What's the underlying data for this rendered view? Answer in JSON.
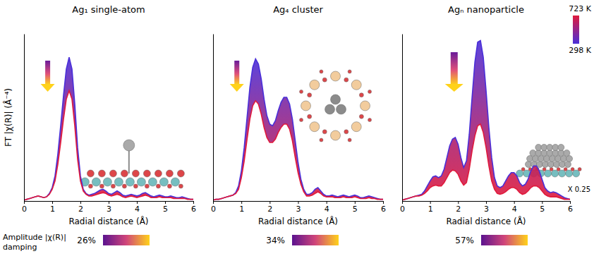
{
  "chart_data": [
    {
      "type": "line",
      "title": "Ag₁ single-atom",
      "x_label": "Radial distance (Å)",
      "y_label": "FT |χ(R)| (Å⁻⁴)",
      "x": [
        0,
        0.1,
        0.2,
        0.3,
        0.4,
        0.5,
        0.6,
        0.7,
        0.8,
        0.9,
        1,
        1.1,
        1.2,
        1.3,
        1.4,
        1.5,
        1.6,
        1.7,
        1.8,
        1.9,
        2,
        2.1,
        2.2,
        2.3,
        2.4,
        2.5,
        2.6,
        2.7,
        2.8,
        2.9,
        3,
        3.1,
        3.2,
        3.3,
        3.4,
        3.5,
        3.6,
        3.7,
        3.8,
        3.9,
        4,
        4.1,
        4.2,
        4.3,
        4.4,
        4.5,
        4.6,
        4.7,
        4.8,
        4.9,
        5,
        5.1,
        5.2,
        5.3,
        5.4,
        5.5,
        5.6,
        5.7,
        5.8,
        5.9,
        6
      ],
      "series": [
        {
          "name": "298 K",
          "color": "#4a2fd8",
          "values": [
            0.05,
            0.1,
            0.15,
            0.2,
            0.25,
            0.3,
            0.25,
            0.2,
            0.25,
            0.45,
            0.8,
            1.5,
            2.8,
            4.5,
            6.3,
            7.9,
            8.6,
            7.9,
            5.8,
            3.2,
            1.5,
            0.7,
            0.45,
            0.35,
            0.4,
            0.45,
            0.55,
            0.65,
            0.7,
            0.6,
            0.45,
            0.4,
            0.5,
            0.6,
            0.5,
            0.35,
            0.3,
            0.35,
            0.4,
            0.35,
            0.3,
            0.35,
            0.45,
            0.5,
            0.4,
            0.3,
            0.25,
            0.3,
            0.35,
            0.3,
            0.25,
            0.25,
            0.3,
            0.25,
            0.2,
            0.2,
            0.25,
            0.2,
            0.15,
            0.1,
            0.1
          ]
        },
        {
          "name": "723 K",
          "color": "#e01a3c",
          "values": [
            0.05,
            0.1,
            0.15,
            0.2,
            0.25,
            0.3,
            0.25,
            0.2,
            0.25,
            0.4,
            0.7,
            1.2,
            2.2,
            3.5,
            4.9,
            6.1,
            6.6,
            6.1,
            4.5,
            2.5,
            1.2,
            0.6,
            0.4,
            0.3,
            0.3,
            0.35,
            0.4,
            0.45,
            0.5,
            0.45,
            0.35,
            0.3,
            0.35,
            0.4,
            0.35,
            0.25,
            0.2,
            0.25,
            0.3,
            0.25,
            0.2,
            0.25,
            0.3,
            0.35,
            0.3,
            0.2,
            0.2,
            0.2,
            0.25,
            0.2,
            0.2,
            0.2,
            0.2,
            0.15,
            0.15,
            0.15,
            0.15,
            0.15,
            0.1,
            0.1,
            0.1
          ]
        }
      ],
      "xlim": [
        0,
        6
      ],
      "xticks": [
        0,
        1,
        2,
        3,
        4,
        5,
        6
      ],
      "ylim": [
        0,
        10
      ],
      "yticks": [],
      "tick_labels": "x",
      "damping": "26%"
    },
    {
      "type": "line",
      "title": "Ag₄ cluster",
      "x_label": "Radial distance (Å)",
      "x": [
        0,
        0.1,
        0.2,
        0.3,
        0.4,
        0.5,
        0.6,
        0.7,
        0.8,
        0.9,
        1,
        1.1,
        1.2,
        1.3,
        1.4,
        1.5,
        1.6,
        1.7,
        1.8,
        1.9,
        2,
        2.1,
        2.2,
        2.3,
        2.4,
        2.5,
        2.6,
        2.7,
        2.8,
        2.9,
        3,
        3.1,
        3.2,
        3.3,
        3.4,
        3.5,
        3.6,
        3.7,
        3.8,
        3.9,
        4,
        4.1,
        4.2,
        4.3,
        4.4,
        4.5,
        4.6,
        4.7,
        4.8,
        4.9,
        5,
        5.1,
        5.2,
        5.3,
        5.4,
        5.5,
        5.6,
        5.7,
        5.8,
        5.9,
        6
      ],
      "series": [
        {
          "name": "298 K",
          "color": "#4a2fd8",
          "values": [
            0.05,
            0.1,
            0.1,
            0.15,
            0.2,
            0.25,
            0.3,
            0.35,
            0.5,
            0.9,
            1.8,
            3.2,
            5.0,
            6.8,
            8.0,
            8.5,
            8.2,
            7.3,
            6.1,
            5.1,
            4.6,
            4.5,
            4.8,
            5.4,
            5.9,
            6.2,
            6.2,
            5.8,
            4.9,
            3.6,
            2.3,
            1.3,
            0.7,
            0.4,
            0.4,
            0.5,
            0.7,
            0.8,
            0.6,
            0.4,
            0.3,
            0.3,
            0.35,
            0.3,
            0.25,
            0.3,
            0.35,
            0.3,
            0.25,
            0.3,
            0.35,
            0.3,
            0.2,
            0.2,
            0.25,
            0.3,
            0.25,
            0.2,
            0.15,
            0.1,
            0.1
          ]
        },
        {
          "name": "723 K",
          "color": "#e01a3c",
          "values": [
            0.05,
            0.1,
            0.1,
            0.15,
            0.2,
            0.25,
            0.3,
            0.35,
            0.45,
            0.7,
            1.4,
            2.4,
            3.7,
            4.9,
            5.7,
            6.0,
            5.8,
            5.2,
            4.4,
            3.8,
            3.5,
            3.5,
            3.7,
            4.1,
            4.4,
            4.6,
            4.6,
            4.3,
            3.6,
            2.6,
            1.7,
            1.0,
            0.55,
            0.3,
            0.3,
            0.35,
            0.45,
            0.55,
            0.45,
            0.3,
            0.25,
            0.25,
            0.25,
            0.2,
            0.2,
            0.2,
            0.25,
            0.2,
            0.2,
            0.2,
            0.25,
            0.2,
            0.15,
            0.15,
            0.15,
            0.2,
            0.15,
            0.15,
            0.1,
            0.1,
            0.1
          ]
        }
      ],
      "xlim": [
        0,
        6
      ],
      "xticks": [
        0,
        1,
        2,
        3,
        4,
        5,
        6
      ],
      "ylim": [
        0,
        10
      ],
      "yticks": [],
      "tick_labels": "x",
      "damping": "34%"
    },
    {
      "type": "line",
      "title": "Agₙ nanoparticle",
      "x_label": "Radial distance (Å)",
      "x": [
        0,
        0.1,
        0.2,
        0.3,
        0.4,
        0.5,
        0.6,
        0.7,
        0.8,
        0.9,
        1,
        1.1,
        1.2,
        1.3,
        1.4,
        1.5,
        1.6,
        1.7,
        1.8,
        1.9,
        2,
        2.1,
        2.2,
        2.3,
        2.4,
        2.5,
        2.6,
        2.7,
        2.8,
        2.9,
        3,
        3.1,
        3.2,
        3.3,
        3.4,
        3.5,
        3.6,
        3.7,
        3.8,
        3.9,
        4,
        4.1,
        4.2,
        4.3,
        4.4,
        4.5,
        4.6,
        4.7,
        4.8,
        4.9,
        5,
        5.1,
        5.2,
        5.3,
        5.4,
        5.5,
        5.6,
        5.7,
        5.8,
        5.9,
        6
      ],
      "series": [
        {
          "name": "298 K",
          "color": "#4a2fd8",
          "values": [
            0.05,
            0.1,
            0.15,
            0.2,
            0.25,
            0.3,
            0.35,
            0.4,
            0.6,
            0.9,
            1.2,
            1.45,
            1.5,
            1.4,
            1.5,
            1.9,
            2.6,
            3.3,
            3.7,
            3.8,
            3.4,
            2.6,
            2.0,
            2.4,
            4.0,
            6.2,
            8.3,
            9.5,
            9.6,
            8.6,
            6.6,
            4.4,
            2.6,
            1.4,
            0.9,
            0.8,
            0.9,
            1.2,
            1.5,
            1.7,
            1.7,
            1.5,
            1.1,
            0.9,
            1.0,
            1.3,
            1.8,
            2.1,
            2.1,
            1.8,
            1.3,
            0.8,
            0.6,
            0.5,
            0.55,
            0.5,
            0.4,
            0.3,
            0.2,
            0.15,
            0.1
          ]
        },
        {
          "name": "723 K",
          "color": "#e01a3c",
          "values": [
            0.05,
            0.1,
            0.15,
            0.2,
            0.25,
            0.3,
            0.3,
            0.35,
            0.45,
            0.6,
            0.8,
            0.9,
            0.95,
            0.9,
            0.9,
            1.1,
            1.4,
            1.7,
            1.85,
            1.8,
            1.6,
            1.2,
            0.95,
            1.1,
            1.9,
            3.0,
            3.9,
            4.5,
            4.6,
            4.1,
            3.2,
            2.1,
            1.2,
            0.7,
            0.45,
            0.4,
            0.45,
            0.55,
            0.7,
            0.8,
            0.8,
            0.7,
            0.5,
            0.4,
            0.45,
            0.6,
            0.8,
            0.9,
            0.9,
            0.8,
            0.6,
            0.4,
            0.3,
            0.25,
            0.25,
            0.25,
            0.2,
            0.15,
            0.1,
            0.1,
            0.1
          ]
        }
      ],
      "xlim": [
        0,
        6
      ],
      "xticks": [
        0,
        1,
        2,
        3,
        4,
        5,
        6
      ],
      "ylim": [
        0,
        10
      ],
      "yticks": [],
      "tick_labels": "x",
      "legend": "top-right",
      "annotation": "X 0.25",
      "damping": "57%"
    }
  ],
  "damping_label": "Amplitude |χ(R)| damping"
}
